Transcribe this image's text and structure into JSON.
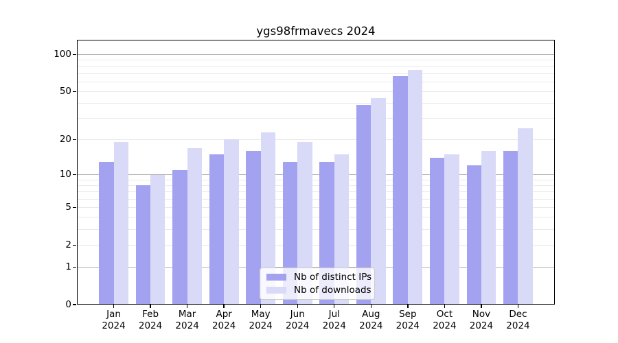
{
  "chart_data": {
    "type": "bar",
    "title": "ygs98frmavecs 2024",
    "year": "2024",
    "months": [
      "Jan",
      "Feb",
      "Mar",
      "Apr",
      "May",
      "Jun",
      "Jul",
      "Aug",
      "Sep",
      "Oct",
      "Nov",
      "Dec"
    ],
    "series": [
      {
        "name": "Nb of distinct IPs",
        "color": "#a2a2f0",
        "values": [
          13,
          8,
          11,
          15,
          16,
          13,
          13,
          39,
          67,
          14,
          12,
          16
        ]
      },
      {
        "name": "Nb of downloads",
        "color": "#d9d9f8",
        "values": [
          19,
          10,
          17,
          20,
          23,
          19,
          15,
          44,
          75,
          15,
          16,
          25
        ]
      }
    ],
    "yscale": "log1p",
    "ylim": [
      0,
      131
    ],
    "yticks": [
      0,
      1,
      2,
      5,
      10,
      20,
      50,
      100
    ],
    "minor_gridlines": [
      3,
      4,
      6,
      7,
      8,
      9,
      30,
      40,
      60,
      70,
      80,
      90
    ],
    "emphasized_gridlines": [
      1,
      10,
      100
    ],
    "grid": true,
    "legend_position": "lower-center",
    "xlabel": "",
    "ylabel": ""
  },
  "colors": {
    "axis": "#000000",
    "grid": "#e9e9e9",
    "grid_emphasis": "#b3b3b3",
    "background": "#ffffff"
  }
}
